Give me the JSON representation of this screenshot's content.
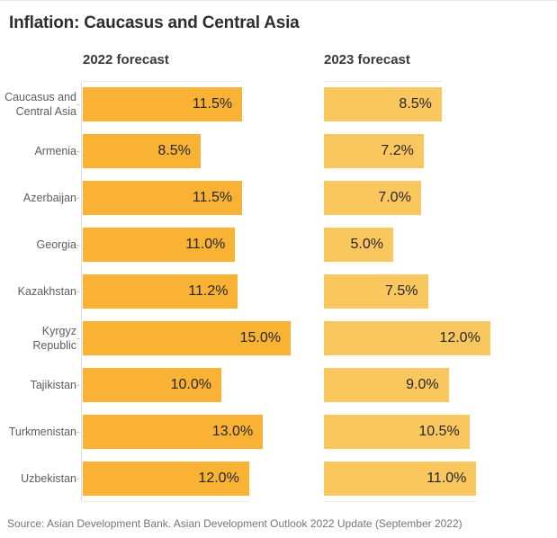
{
  "title": "Inflation: Caucasus and Central Asia",
  "source": "Source: Asian Development Bank. Asian Development Outlook 2022 Update (September 2022)",
  "colors": {
    "bar_2022": "#F9B233",
    "bar_2023": "#FAC65E",
    "axis_line": "#DDDDDD",
    "title_text": "#2E2E2E",
    "category_label_text": "#5C5C5C",
    "value_label_text": "#262626",
    "source_text": "#757575"
  },
  "chart_data": {
    "type": "bar",
    "orientation": "horizontal",
    "title": "Inflation: Caucasus and Central Asia",
    "categories": [
      "Caucasus and Central Asia",
      "Armenia",
      "Azerbaijan",
      "Georgia",
      "Kazakhstan",
      "Kyrgyz Republic",
      "Tajikistan",
      "Turkmenistan",
      "Uzbekistan"
    ],
    "series": [
      {
        "name": "2022 forecast",
        "color": "#F9B233",
        "values": [
          11.5,
          8.5,
          11.5,
          11.0,
          11.2,
          15.0,
          10.0,
          13.0,
          12.0
        ]
      },
      {
        "name": "2023 forecast",
        "color": "#FAC65E",
        "values": [
          8.5,
          7.2,
          7.0,
          5.0,
          7.5,
          12.0,
          9.0,
          10.5,
          11.0
        ]
      }
    ],
    "value_suffix": "%",
    "value_decimals": 1,
    "xlim": [
      0,
      15.5
    ],
    "grid": false,
    "legend_position": "column-headers",
    "data_labels": "inside-end"
  }
}
